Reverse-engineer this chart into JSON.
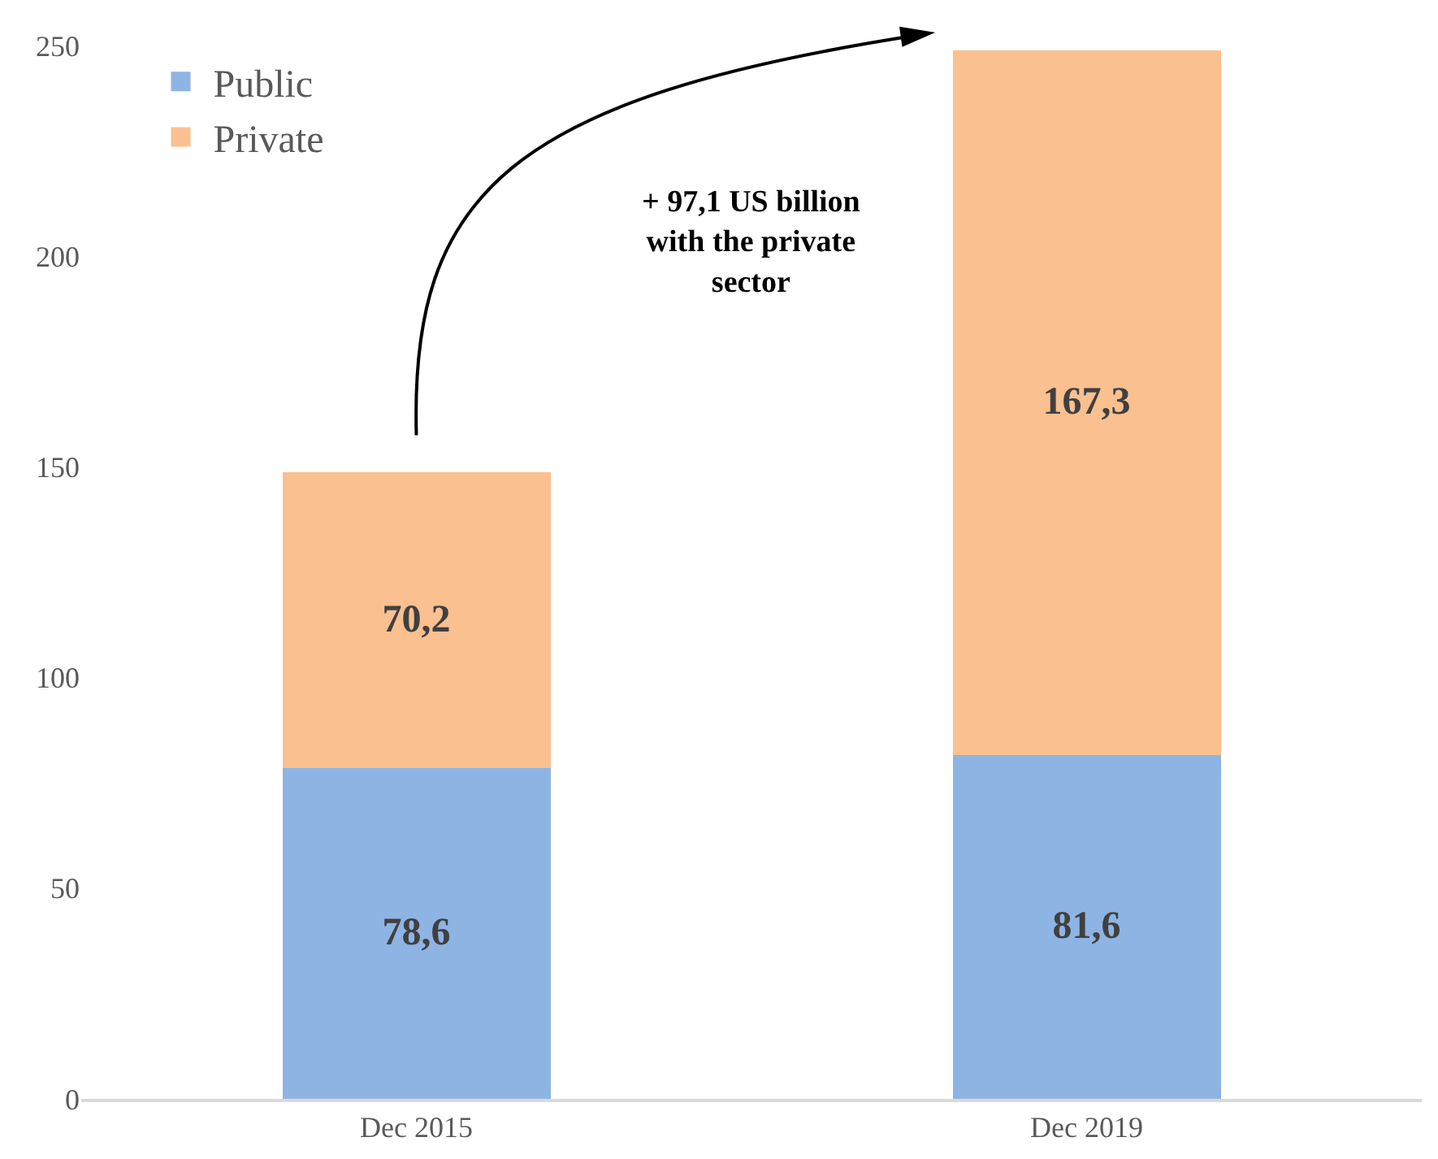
{
  "chart_data": {
    "type": "bar",
    "stacked": true,
    "categories": [
      "Dec 2015",
      "Dec 2019"
    ],
    "series": [
      {
        "name": "Public",
        "color": "#8eb4e3",
        "values": [
          78.6,
          81.6
        ],
        "value_labels": [
          "78,6",
          "81,6"
        ]
      },
      {
        "name": "Private",
        "color": "#fac090",
        "values": [
          70.2,
          167.3
        ],
        "value_labels": [
          "70,2",
          "167,3"
        ]
      }
    ],
    "ylim": [
      0,
      250
    ],
    "yticks": [
      0,
      50,
      100,
      150,
      200,
      250
    ],
    "grid": false,
    "legend": "top left",
    "annotations": [
      "+ 97,1 US billion\nwith the private\nsector"
    ]
  }
}
